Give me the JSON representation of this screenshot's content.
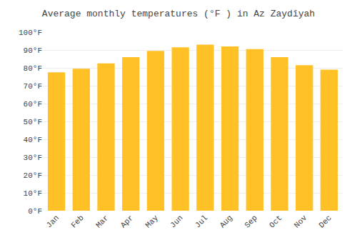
{
  "chart_data": {
    "type": "bar",
    "title": "Average monthly temperatures (°F ) in Az Zaydīyah",
    "categories": [
      "Jan",
      "Feb",
      "Mar",
      "Apr",
      "May",
      "Jun",
      "Jul",
      "Aug",
      "Sep",
      "Oct",
      "Nov",
      "Dec"
    ],
    "values": [
      77.5,
      79.5,
      82.5,
      86.0,
      89.5,
      91.5,
      93.0,
      92.0,
      90.5,
      86.0,
      81.5,
      79.0
    ],
    "color": "#FFC125",
    "ylim": [
      0,
      100
    ],
    "yticks": [
      {
        "value": 0,
        "label": "0°F"
      },
      {
        "value": 10,
        "label": "10°F"
      },
      {
        "value": 20,
        "label": "20°F"
      },
      {
        "value": 30,
        "label": "30°F"
      },
      {
        "value": 40,
        "label": "40°F"
      },
      {
        "value": 50,
        "label": "50°F"
      },
      {
        "value": 60,
        "label": "60°F"
      },
      {
        "value": 70,
        "label": "70°F"
      },
      {
        "value": 80,
        "label": "80°F"
      },
      {
        "value": 90,
        "label": "90°F"
      },
      {
        "value": 100,
        "label": "100°F"
      }
    ],
    "grid": true
  }
}
